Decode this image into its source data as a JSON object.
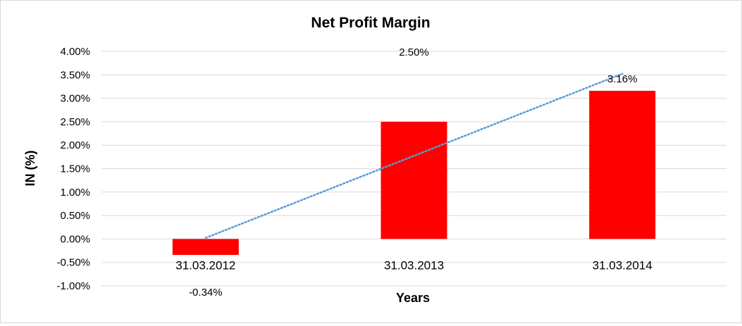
{
  "chart_data": {
    "type": "bar",
    "title": "Net Profit Margin",
    "xlabel": "Years",
    "ylabel": "IN (%)",
    "categories": [
      "31.03.2012",
      "31.03.2013",
      "31.03.2014"
    ],
    "values": [
      -0.34,
      2.5,
      3.16
    ],
    "data_labels": [
      "-0.34%",
      "2.50%",
      "3.16%"
    ],
    "ylim": [
      -1.0,
      4.0
    ],
    "yticks": [
      4.0,
      3.5,
      3.0,
      2.5,
      2.0,
      1.5,
      1.0,
      0.5,
      0.0,
      -0.5,
      -1.0
    ],
    "ytick_labels": [
      "4.00%",
      "3.50%",
      "3.00%",
      "2.50%",
      "2.00%",
      "1.50%",
      "1.00%",
      "0.50%",
      "0.00%",
      "-0.50%",
      "-1.00%"
    ],
    "trendline": {
      "type": "linear",
      "style": "dotted",
      "color": "#5b9bd5"
    },
    "grid": true,
    "legend": "none",
    "bar_color": "#ff0000",
    "gridline_color": "#d9d9d9"
  }
}
